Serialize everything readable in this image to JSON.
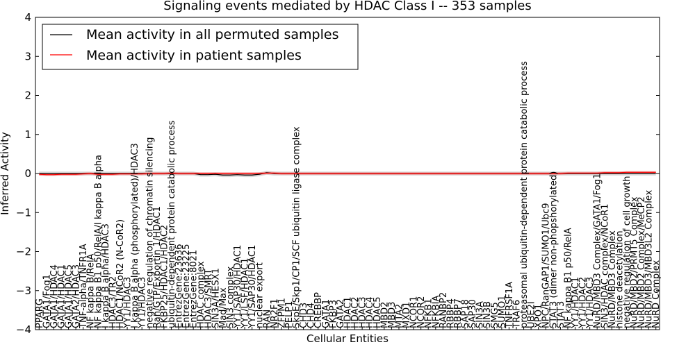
{
  "chart_data": {
    "type": "line",
    "title": "Signaling events mediated by HDAC Class I -- 353 samples",
    "xlabel": "Cellular Entities",
    "ylabel": "Inferred Activity",
    "ylim": [
      -4,
      4
    ],
    "yticks": [
      -4,
      -3,
      -2,
      -1,
      0,
      1,
      2,
      3,
      4
    ],
    "legend_position": "top-left",
    "colors": {
      "permuted": "#000000",
      "patient": "#ff0000",
      "patient_band": "#f08080",
      "permuted_band": "#c8c8c8"
    },
    "categories": [
      "PPARG",
      "GATA1/Fog1",
      "GATA1/HDAC4",
      "GATA1/HDAC1",
      "GATA1/HDAC5",
      "GATA2/HDAC3",
      "TNF-alpha/TNFR1A",
      "NF kappa B/RelA",
      "NF kappa B1 p50/RelA/I kappa B alpha",
      "I kappa B alpha/HDAC3",
      "HDAC3/TR2",
      "HDAC1/NCoR2 (N-CoR2)",
      "YY1/HDAC3",
      "I kappa B alpha (phosphorylated)/HDAC3",
      "YY1/HDAC3",
      "negative regulation of chromatin silencing",
      "Ran/GTP/Exportin 1/HDAC1",
      "FKBP25/HDAC1/HDAC2",
      "ubiquitin-dependent protein catabolic process",
      "EntrezGene:23636",
      "EntrezGene:23225",
      "EntrezGene:8021",
      "HDAC complex",
      "HDAC3/SMRT",
      "SIN3A/HESX1",
      "Mad/Max",
      "SIN3 complex",
      "YY1/SAP30/HDAC1",
      "YY1/LSF/HDAC1",
      "YY1/SAP30/HDAC1",
      "nuclear export",
      "RAN",
      "NR2F1",
      "ZFPM1",
      "PELP1",
      "SkpE/Skp1/CP1/SCF ubiquitin ligase complex",
      "CHD3",
      "CHD4",
      "CREBBP",
      "GATA1",
      "FKBP3",
      "GATA2",
      "HDAC1",
      "HDAC2",
      "HDAC3",
      "HDAC4",
      "HDAC5",
      "MBD2",
      "MBD3",
      "MTA2",
      "MXD1",
      "NCOR1",
      "NCOR2",
      "NFKB1",
      "NFKBIA",
      "RANBP2",
      "RBBP4",
      "RBBP7",
      "SAP18",
      "SAP30",
      "SIN3A",
      "SIN3B",
      "SMG5",
      "SUMO1",
      "TNFRSF1A",
      "TRAF6",
      "proteasomal ubiquitin-dependent protein catabolic process",
      "UBE2I",
      "XPO1",
      "NPC/RanGAP1/SUMO1/Ubc9",
      "STAT3 (dimer non-phopshorylated)",
      "STAT3",
      "NF kappa B1 p50/RelA",
      "YY1/HDAC1",
      "YY1/HDAC2",
      "YY1/HDAC3",
      "NuRD/MBD3 Complex/GATA1/Fog1",
      "SIN3/HDAC complex/NCoR1",
      "NuRD/MBD3 Complex",
      "histone deacetylation",
      "negative regulation of cell growth",
      "NuRD/MBD2/PRMT5 Complex",
      "NuRD/MBD2 Complex/MeCP2",
      "NuRD/MBD3/MBD3L2 Complex",
      "NuRD Complex"
    ],
    "series": [
      {
        "name": "Mean activity in all permuted samples",
        "values": [
          0.0,
          0.0,
          0.0,
          0.0,
          0.0,
          0.0,
          0.0,
          0.0,
          0.0,
          0.0,
          0.0,
          0.0,
          0.0,
          0.0,
          0.0,
          0.0,
          0.0,
          0.0,
          0.0,
          0.0,
          0.0,
          0.0,
          -0.03,
          -0.03,
          -0.02,
          -0.04,
          -0.04,
          -0.03,
          -0.04,
          -0.04,
          -0.02,
          0.02,
          0.0,
          0.0,
          0.0,
          0.0,
          0.0,
          0.0,
          0.0,
          0.0,
          0.0,
          0.0,
          0.0,
          0.0,
          0.0,
          0.0,
          0.0,
          0.0,
          0.0,
          0.0,
          0.0,
          0.0,
          0.0,
          0.0,
          0.0,
          0.0,
          0.0,
          0.0,
          0.0,
          0.0,
          0.0,
          0.0,
          0.0,
          0.0,
          0.0,
          0.0,
          0.0,
          0.0,
          0.0,
          0.0,
          0.0,
          0.0,
          0.0,
          0.0,
          0.0,
          0.0,
          0.0,
          0.0,
          0.0,
          0.0,
          0.0,
          0.0,
          0.0,
          0.0,
          0.0
        ],
        "band": 0.05
      },
      {
        "name": "Mean activity in patient samples",
        "values": [
          -0.02,
          -0.03,
          -0.03,
          -0.02,
          -0.02,
          -0.02,
          -0.01,
          0.0,
          -0.02,
          -0.02,
          -0.02,
          -0.01,
          -0.01,
          -0.01,
          -0.01,
          0.0,
          0.0,
          0.0,
          0.01,
          0.0,
          0.0,
          0.0,
          0.0,
          0.0,
          0.0,
          0.0,
          0.0,
          0.0,
          0.0,
          0.0,
          0.0,
          0.01,
          0.01,
          0.0,
          0.0,
          0.0,
          0.0,
          0.0,
          0.0,
          0.0,
          0.0,
          0.0,
          0.0,
          0.0,
          0.0,
          0.0,
          0.0,
          0.0,
          0.0,
          0.0,
          0.0,
          0.0,
          0.0,
          0.0,
          0.0,
          0.0,
          0.0,
          0.0,
          0.0,
          0.0,
          0.0,
          0.0,
          0.0,
          0.0,
          0.0,
          0.0,
          0.0,
          0.0,
          0.0,
          0.0,
          0.0,
          0.0,
          0.01,
          0.01,
          0.01,
          0.01,
          0.01,
          0.02,
          0.02,
          0.02,
          0.03,
          0.03,
          0.03,
          0.03,
          0.03
        ],
        "band": 0.03
      }
    ]
  }
}
